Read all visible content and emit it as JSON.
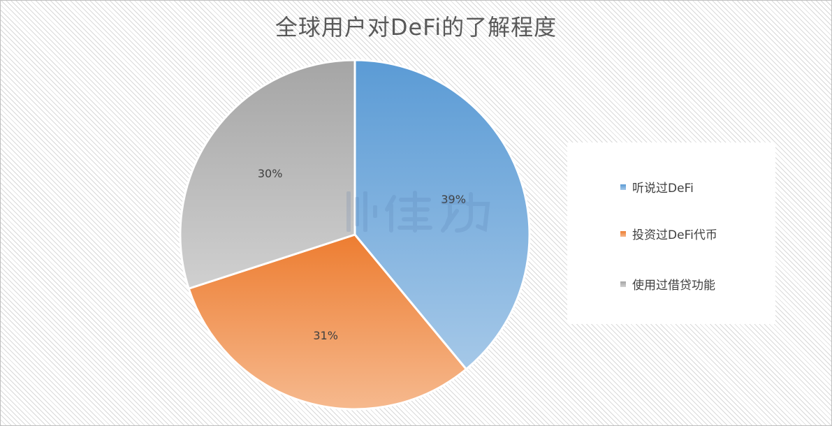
{
  "chart_data": {
    "type": "pie",
    "title": "全球用户对DeFi的了解程度",
    "categories": [
      "听说过DeFi",
      "投资过DeFi代币",
      "使用过借贷功能"
    ],
    "values": [
      39,
      31,
      30
    ],
    "data_labels": [
      "39%",
      "31%",
      "30%"
    ],
    "colors": [
      "#5b9bd5",
      "#ed7d31",
      "#a5a5a5"
    ],
    "legend_position": "right",
    "start_angle": "12 o'clock, clockwise"
  },
  "watermark": {
    "icon": "律动-logo-icon"
  }
}
